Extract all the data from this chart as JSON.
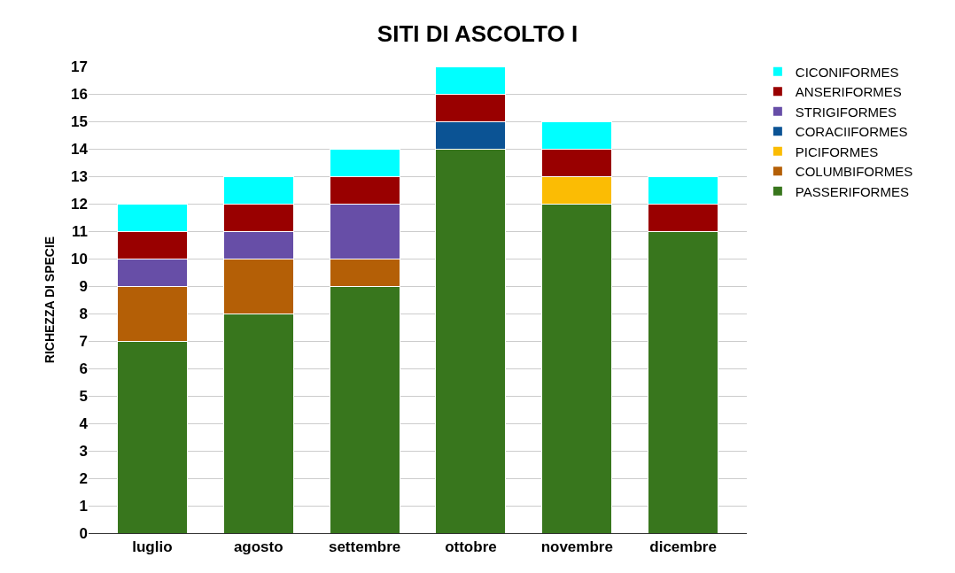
{
  "chart_data": {
    "type": "bar",
    "title": "SITI DI ASCOLTO I",
    "ylabel": "RICHEZZA DI SPECIE",
    "stacked": true,
    "categories": [
      "luglio",
      "agosto",
      "settembre",
      "ottobre",
      "novembre",
      "dicembre"
    ],
    "series": [
      {
        "name": "PASSERIFORMES",
        "color": "#38761d",
        "values": [
          7,
          8,
          9,
          14,
          12,
          11
        ]
      },
      {
        "name": "COLUMBIFORMES",
        "color": "#b45f06",
        "values": [
          2,
          2,
          1,
          0,
          0,
          0
        ]
      },
      {
        "name": "PICIFORMES",
        "color": "#fbbc04",
        "values": [
          0,
          0,
          0,
          0,
          1,
          0
        ]
      },
      {
        "name": "CORACIIFORMES",
        "color": "#0b5394",
        "values": [
          0,
          0,
          0,
          1,
          0,
          0
        ]
      },
      {
        "name": "STRIGIFORMES",
        "color": "#674ea7",
        "values": [
          1,
          1,
          2,
          0,
          0,
          0
        ]
      },
      {
        "name": "ANSERIFORMES",
        "color": "#990000",
        "values": [
          1,
          1,
          1,
          1,
          1,
          1
        ]
      },
      {
        "name": "CICONIFORMES",
        "color": "#00ffff",
        "values": [
          1,
          1,
          1,
          1,
          1,
          1
        ]
      }
    ],
    "ylim": [
      0,
      17
    ],
    "yticks": [
      0,
      1,
      2,
      3,
      4,
      5,
      6,
      7,
      8,
      9,
      10,
      11,
      12,
      13,
      14,
      15,
      16,
      17
    ],
    "grid": "y",
    "legend": "top right"
  }
}
